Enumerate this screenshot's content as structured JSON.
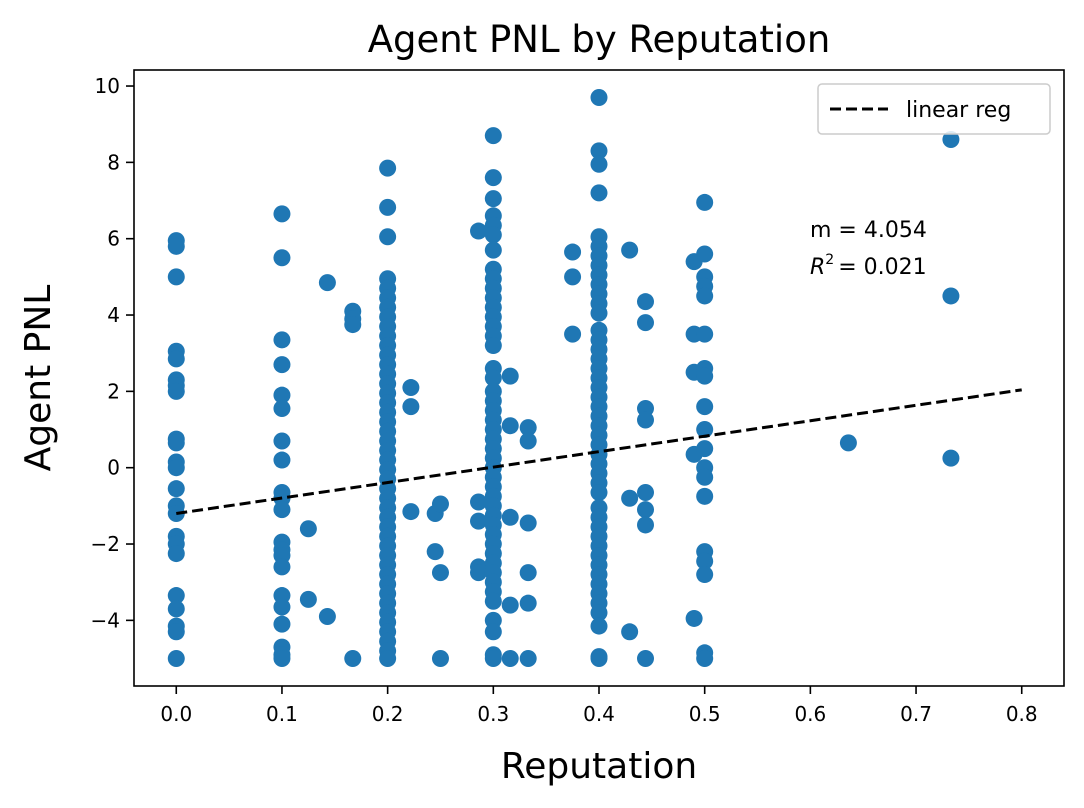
{
  "chart_data": {
    "type": "scatter",
    "title": "Agent PNL by Reputation",
    "xlabel": "Reputation",
    "ylabel": "Agent PNL",
    "xlim": [
      -0.04,
      0.84
    ],
    "ylim": [
      -5.72,
      10.42
    ],
    "xticks": [
      0.0,
      0.1,
      0.2,
      0.3,
      0.4,
      0.5,
      0.6,
      0.7,
      0.8
    ],
    "xtick_labels": [
      "0.0",
      "0.1",
      "0.2",
      "0.3",
      "0.4",
      "0.5",
      "0.6",
      "0.7",
      "0.8"
    ],
    "yticks": [
      -4,
      -2,
      0,
      2,
      4,
      6,
      8,
      10
    ],
    "ytick_labels": [
      "−4",
      "−2",
      "0",
      "2",
      "4",
      "6",
      "8",
      "10"
    ],
    "grid": false,
    "legend": {
      "position": "top-right",
      "entries": [
        "linear reg"
      ]
    },
    "point_color": "#1f77b4",
    "line_color": "#000000",
    "regression": {
      "x": [
        0.0,
        0.8
      ],
      "y": [
        -1.2,
        2.04
      ]
    },
    "annotations": {
      "slope_text": "m = 4.054",
      "r2_label": "R",
      "r2_sup": "2",
      "r2_value": "=  0.021"
    },
    "points": [
      [
        0,
        5.95
      ],
      [
        0,
        5.8
      ],
      [
        0,
        5.0
      ],
      [
        0,
        3.05
      ],
      [
        0,
        2.85
      ],
      [
        0,
        2.3
      ],
      [
        0,
        2.15
      ],
      [
        0,
        2.0
      ],
      [
        0,
        0.75
      ],
      [
        0,
        0.65
      ],
      [
        0,
        0.15
      ],
      [
        0,
        0.0
      ],
      [
        0,
        -0.55
      ],
      [
        0,
        -1.0
      ],
      [
        0,
        -1.2
      ],
      [
        0,
        -1.8
      ],
      [
        0,
        -2.0
      ],
      [
        0,
        -2.25
      ],
      [
        0,
        -3.35
      ],
      [
        0,
        -3.7
      ],
      [
        0,
        -4.15
      ],
      [
        0,
        -4.3
      ],
      [
        0,
        -5.0
      ],
      [
        0.1,
        6.65
      ],
      [
        0.1,
        5.5
      ],
      [
        0.1,
        3.35
      ],
      [
        0.1,
        2.7
      ],
      [
        0.1,
        1.9
      ],
      [
        0.1,
        1.55
      ],
      [
        0.1,
        0.7
      ],
      [
        0.1,
        0.2
      ],
      [
        0.1,
        -0.65
      ],
      [
        0.1,
        -0.8
      ],
      [
        0.1,
        -1.1
      ],
      [
        0.1,
        -1.95
      ],
      [
        0.1,
        -2.15
      ],
      [
        0.1,
        -2.3
      ],
      [
        0.1,
        -2.6
      ],
      [
        0.1,
        -3.35
      ],
      [
        0.1,
        -3.65
      ],
      [
        0.1,
        -4.1
      ],
      [
        0.1,
        -4.7
      ],
      [
        0.1,
        -4.9
      ],
      [
        0.1,
        -5.0
      ],
      [
        0.125,
        -1.6
      ],
      [
        0.125,
        -3.45
      ],
      [
        0.143,
        4.85
      ],
      [
        0.143,
        -3.9
      ],
      [
        0.167,
        4.1
      ],
      [
        0.167,
        3.9
      ],
      [
        0.167,
        3.75
      ],
      [
        0.167,
        -5.0
      ],
      [
        0.2,
        7.85
      ],
      [
        0.2,
        6.82
      ],
      [
        0.2,
        6.05
      ],
      [
        0.2,
        4.95
      ],
      [
        0.2,
        4.7
      ],
      [
        0.2,
        4.45
      ],
      [
        0.2,
        4.2
      ],
      [
        0.2,
        3.95
      ],
      [
        0.2,
        3.7
      ],
      [
        0.2,
        3.45
      ],
      [
        0.2,
        3.2
      ],
      [
        0.2,
        2.95
      ],
      [
        0.2,
        2.7
      ],
      [
        0.2,
        2.45
      ],
      [
        0.2,
        2.2
      ],
      [
        0.2,
        1.95
      ],
      [
        0.2,
        1.7
      ],
      [
        0.2,
        1.45
      ],
      [
        0.2,
        1.2
      ],
      [
        0.2,
        0.95
      ],
      [
        0.2,
        0.7
      ],
      [
        0.2,
        0.45
      ],
      [
        0.2,
        0.2
      ],
      [
        0.2,
        -0.05
      ],
      [
        0.2,
        -0.3
      ],
      [
        0.2,
        -0.55
      ],
      [
        0.2,
        -0.8
      ],
      [
        0.2,
        -1.05
      ],
      [
        0.2,
        -1.3
      ],
      [
        0.2,
        -1.55
      ],
      [
        0.2,
        -1.8
      ],
      [
        0.2,
        -2.05
      ],
      [
        0.2,
        -2.3
      ],
      [
        0.2,
        -2.55
      ],
      [
        0.2,
        -2.8
      ],
      [
        0.2,
        -3.05
      ],
      [
        0.2,
        -3.3
      ],
      [
        0.2,
        -3.55
      ],
      [
        0.2,
        -3.8
      ],
      [
        0.2,
        -4.05
      ],
      [
        0.2,
        -4.3
      ],
      [
        0.2,
        -4.55
      ],
      [
        0.2,
        -4.8
      ],
      [
        0.2,
        -5.0
      ],
      [
        0.222,
        2.1
      ],
      [
        0.222,
        1.6
      ],
      [
        0.222,
        -1.15
      ],
      [
        0.245,
        -2.2
      ],
      [
        0.245,
        -1.2
      ],
      [
        0.25,
        -0.95
      ],
      [
        0.25,
        -2.75
      ],
      [
        0.25,
        -5.0
      ],
      [
        0.286,
        6.2
      ],
      [
        0.286,
        -0.9
      ],
      [
        0.286,
        -1.4
      ],
      [
        0.286,
        -2.6
      ],
      [
        0.286,
        -2.75
      ],
      [
        0.3,
        8.7
      ],
      [
        0.3,
        7.6
      ],
      [
        0.3,
        7.05
      ],
      [
        0.3,
        6.6
      ],
      [
        0.3,
        6.35
      ],
      [
        0.3,
        6.1
      ],
      [
        0.3,
        5.7
      ],
      [
        0.3,
        5.2
      ],
      [
        0.3,
        4.95
      ],
      [
        0.3,
        4.7
      ],
      [
        0.3,
        4.45
      ],
      [
        0.3,
        4.2
      ],
      [
        0.3,
        3.95
      ],
      [
        0.3,
        3.7
      ],
      [
        0.3,
        3.45
      ],
      [
        0.3,
        3.2
      ],
      [
        0.3,
        2.6
      ],
      [
        0.3,
        2.35
      ],
      [
        0.3,
        2.0
      ],
      [
        0.3,
        1.75
      ],
      [
        0.3,
        1.5
      ],
      [
        0.3,
        1.25
      ],
      [
        0.3,
        1.0
      ],
      [
        0.3,
        0.75
      ],
      [
        0.3,
        0.5
      ],
      [
        0.3,
        0.25
      ],
      [
        0.3,
        0.0
      ],
      [
        0.3,
        -0.25
      ],
      [
        0.3,
        -0.5
      ],
      [
        0.3,
        -0.75
      ],
      [
        0.3,
        -1.0
      ],
      [
        0.3,
        -1.25
      ],
      [
        0.3,
        -1.5
      ],
      [
        0.3,
        -1.75
      ],
      [
        0.3,
        -2.0
      ],
      [
        0.3,
        -2.25
      ],
      [
        0.3,
        -2.5
      ],
      [
        0.3,
        -2.75
      ],
      [
        0.3,
        -3.0
      ],
      [
        0.3,
        -3.25
      ],
      [
        0.3,
        -3.5
      ],
      [
        0.3,
        -4.0
      ],
      [
        0.3,
        -4.3
      ],
      [
        0.3,
        -4.9
      ],
      [
        0.3,
        -5.0
      ],
      [
        0.316,
        2.4
      ],
      [
        0.316,
        1.1
      ],
      [
        0.316,
        -1.3
      ],
      [
        0.316,
        -3.6
      ],
      [
        0.316,
        -5.0
      ],
      [
        0.333,
        1.05
      ],
      [
        0.333,
        0.7
      ],
      [
        0.333,
        -1.45
      ],
      [
        0.333,
        -2.75
      ],
      [
        0.333,
        -3.55
      ],
      [
        0.333,
        -5.0
      ],
      [
        0.375,
        5.65
      ],
      [
        0.375,
        5.0
      ],
      [
        0.375,
        3.5
      ],
      [
        0.4,
        9.7
      ],
      [
        0.4,
        8.3
      ],
      [
        0.4,
        7.95
      ],
      [
        0.4,
        7.2
      ],
      [
        0.4,
        6.05
      ],
      [
        0.4,
        5.8
      ],
      [
        0.4,
        5.55
      ],
      [
        0.4,
        5.3
      ],
      [
        0.4,
        5.05
      ],
      [
        0.4,
        4.8
      ],
      [
        0.4,
        4.55
      ],
      [
        0.4,
        4.3
      ],
      [
        0.4,
        4.05
      ],
      [
        0.4,
        3.6
      ],
      [
        0.4,
        3.35
      ],
      [
        0.4,
        3.1
      ],
      [
        0.4,
        2.85
      ],
      [
        0.4,
        2.6
      ],
      [
        0.4,
        2.35
      ],
      [
        0.4,
        2.1
      ],
      [
        0.4,
        1.85
      ],
      [
        0.4,
        1.6
      ],
      [
        0.4,
        1.35
      ],
      [
        0.4,
        1.1
      ],
      [
        0.4,
        0.85
      ],
      [
        0.4,
        0.6
      ],
      [
        0.4,
        0.35
      ],
      [
        0.4,
        0.1
      ],
      [
        0.4,
        -0.15
      ],
      [
        0.4,
        -0.4
      ],
      [
        0.4,
        -0.65
      ],
      [
        0.4,
        -1.05
      ],
      [
        0.4,
        -1.3
      ],
      [
        0.4,
        -1.55
      ],
      [
        0.4,
        -1.8
      ],
      [
        0.4,
        -2.05
      ],
      [
        0.4,
        -2.3
      ],
      [
        0.4,
        -2.55
      ],
      [
        0.4,
        -2.8
      ],
      [
        0.4,
        -3.05
      ],
      [
        0.4,
        -3.3
      ],
      [
        0.4,
        -3.55
      ],
      [
        0.4,
        -3.8
      ],
      [
        0.4,
        -4.15
      ],
      [
        0.4,
        -4.95
      ],
      [
        0.4,
        -5.0
      ],
      [
        0.429,
        5.7
      ],
      [
        0.429,
        -0.8
      ],
      [
        0.429,
        -4.3
      ],
      [
        0.444,
        4.35
      ],
      [
        0.444,
        3.8
      ],
      [
        0.444,
        1.55
      ],
      [
        0.444,
        1.25
      ],
      [
        0.444,
        -0.65
      ],
      [
        0.444,
        -1.1
      ],
      [
        0.444,
        -1.5
      ],
      [
        0.444,
        -5.0
      ],
      [
        0.49,
        5.4
      ],
      [
        0.49,
        3.5
      ],
      [
        0.49,
        2.5
      ],
      [
        0.49,
        0.35
      ],
      [
        0.49,
        -3.95
      ],
      [
        0.5,
        6.95
      ],
      [
        0.5,
        5.6
      ],
      [
        0.5,
        5.0
      ],
      [
        0.5,
        4.75
      ],
      [
        0.5,
        4.5
      ],
      [
        0.5,
        3.5
      ],
      [
        0.5,
        2.6
      ],
      [
        0.5,
        2.4
      ],
      [
        0.5,
        1.6
      ],
      [
        0.5,
        1.0
      ],
      [
        0.5,
        0.5
      ],
      [
        0.5,
        0.0
      ],
      [
        0.5,
        -0.25
      ],
      [
        0.5,
        -0.75
      ],
      [
        0.5,
        -2.2
      ],
      [
        0.5,
        -2.45
      ],
      [
        0.5,
        -2.8
      ],
      [
        0.5,
        -4.85
      ],
      [
        0.5,
        -5.0
      ],
      [
        0.636,
        0.65
      ],
      [
        0.733,
        8.6
      ],
      [
        0.733,
        4.5
      ],
      [
        0.733,
        0.25
      ]
    ]
  }
}
